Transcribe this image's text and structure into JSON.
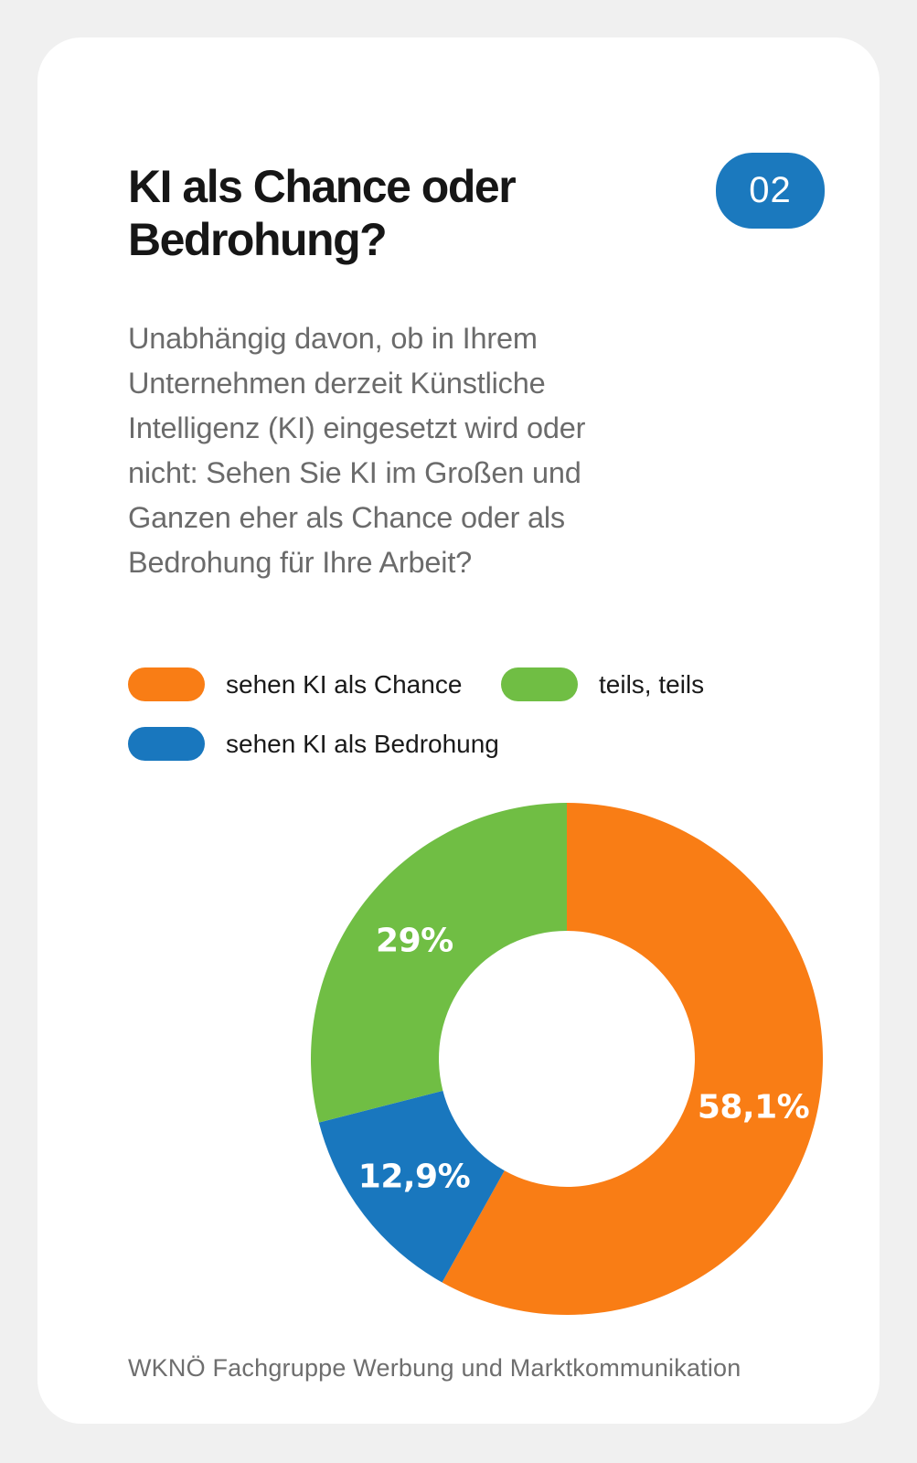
{
  "card": {
    "badge": "02",
    "title": "KI als Chance oder\nBedrohung?",
    "question": "Unabhängig davon, ob in Ihrem\nUnternehmen derzeit Künstliche\nIntelligenz (KI) eingesetzt wird oder\nnicht: Sehen Sie KI im Großen und\nGanzen eher als Chance oder als\nBedrohung für Ihre Arbeit?",
    "footer": "WKNÖ Fachgruppe Werbung und Marktkommunikation"
  },
  "colors": {
    "background": "#F0F0F0",
    "card": "#FFFFFF",
    "orange": "#F97D15",
    "green": "#70BE44",
    "blue": "#1977BE",
    "badge_blue": "#1B79BE",
    "body_gray": "#6B6B6B",
    "title_black": "#161616",
    "label_white": "#FFFFFF"
  },
  "legend": [
    {
      "label": "sehen KI als Chance",
      "color": "#F97D15"
    },
    {
      "label": "teils, teils",
      "color": "#70BE44"
    },
    {
      "label": "sehen KI als Bedrohung",
      "color": "#1977BE"
    }
  ],
  "chart_data": {
    "type": "pie",
    "subtype": "donut",
    "title": "KI als Chance oder Bedrohung?",
    "direction": "clockwise",
    "start_angle_deg": 0,
    "inner_radius_ratio": 0.5,
    "label_radius_ratio": 0.753,
    "slices": [
      {
        "label": "sehen KI als Chance",
        "value": 58.1,
        "display": "58,1%",
        "color": "#F97D15"
      },
      {
        "label": "sehen KI als Bedrohung",
        "value": 12.9,
        "display": "12,9%",
        "color": "#1977BE"
      },
      {
        "label": "teils, teils",
        "value": 29.0,
        "display": "29%",
        "color": "#70BE44"
      }
    ]
  }
}
